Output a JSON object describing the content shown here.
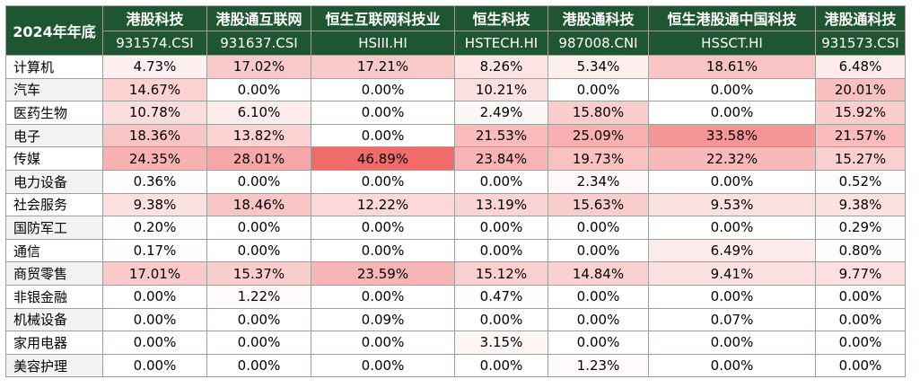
{
  "chart_data": {
    "type": "table",
    "corner_label": "2024年年底",
    "columns": [
      {
        "name": "港股科技",
        "code": "931574.CSI"
      },
      {
        "name": "港股通互联网",
        "code": "931637.CSI"
      },
      {
        "name": "恒生互联网科技业",
        "code": "HSIII.HI"
      },
      {
        "name": "恒生科技",
        "code": "HSTECH.HI"
      },
      {
        "name": "港股通科技",
        "code": "987008.CNI"
      },
      {
        "name": "恒生港股通中国科技",
        "code": "HSSCT.HI"
      },
      {
        "name": "港股通科技",
        "code": "931573.CSI"
      }
    ],
    "rows": [
      {
        "sector": "计算机",
        "values": [
          "4.73%",
          "17.02%",
          "17.21%",
          "8.26%",
          "5.34%",
          "18.61%",
          "6.48%"
        ]
      },
      {
        "sector": "汽车",
        "values": [
          "14.67%",
          "0.00%",
          "0.00%",
          "10.21%",
          "0.00%",
          "0.00%",
          "20.01%"
        ]
      },
      {
        "sector": "医药生物",
        "values": [
          "10.78%",
          "6.10%",
          "0.00%",
          "2.49%",
          "15.80%",
          "0.00%",
          "15.92%"
        ]
      },
      {
        "sector": "电子",
        "values": [
          "18.36%",
          "13.82%",
          "0.00%",
          "21.53%",
          "25.09%",
          "33.58%",
          "21.57%"
        ]
      },
      {
        "sector": "传媒",
        "values": [
          "24.35%",
          "28.01%",
          "46.89%",
          "23.84%",
          "19.73%",
          "22.32%",
          "15.27%"
        ]
      },
      {
        "sector": "电力设备",
        "values": [
          "0.36%",
          "0.00%",
          "0.00%",
          "0.00%",
          "2.34%",
          "0.00%",
          "0.52%"
        ]
      },
      {
        "sector": "社会服务",
        "values": [
          "9.38%",
          "18.46%",
          "12.22%",
          "13.19%",
          "15.63%",
          "9.53%",
          "9.38%"
        ]
      },
      {
        "sector": "国防军工",
        "values": [
          "0.20%",
          "0.00%",
          "0.00%",
          "0.00%",
          "0.00%",
          "0.00%",
          "0.29%"
        ]
      },
      {
        "sector": "通信",
        "values": [
          "0.17%",
          "0.00%",
          "0.00%",
          "0.00%",
          "0.00%",
          "6.49%",
          "0.80%"
        ]
      },
      {
        "sector": "商贸零售",
        "values": [
          "17.01%",
          "15.37%",
          "23.59%",
          "15.12%",
          "14.84%",
          "9.41%",
          "9.77%"
        ]
      },
      {
        "sector": "非银金融",
        "values": [
          "0.00%",
          "1.22%",
          "0.00%",
          "0.47%",
          "0.00%",
          "0.00%",
          "0.00%"
        ]
      },
      {
        "sector": "机械设备",
        "values": [
          "0.00%",
          "0.00%",
          "0.09%",
          "0.00%",
          "0.00%",
          "0.07%",
          "0.00%"
        ]
      },
      {
        "sector": "家用电器",
        "values": [
          "0.00%",
          "0.00%",
          "0.00%",
          "3.15%",
          "0.00%",
          "0.00%",
          "0.00%"
        ]
      },
      {
        "sector": "美容护理",
        "values": [
          "0.00%",
          "0.00%",
          "0.00%",
          "0.00%",
          "1.23%",
          "0.00%",
          "0.00%"
        ]
      }
    ],
    "colors": {
      "header_bg": "#1e5631",
      "header_text": "#ffffff",
      "heat_low": "#ffffff",
      "heat_high": "#f26b6b",
      "heat_max_value": 46.89
    }
  }
}
